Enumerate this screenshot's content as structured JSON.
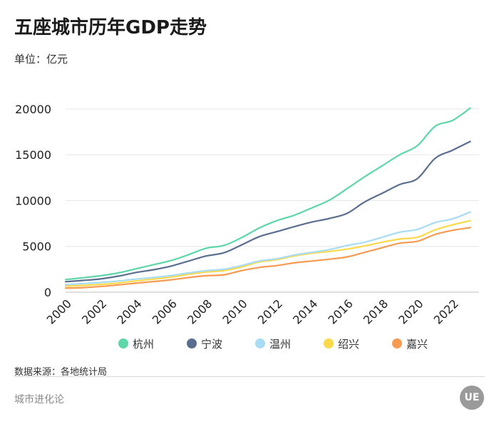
{
  "header": {
    "title": "五座城市历年GDP走势",
    "unit": "单位：亿元"
  },
  "footer": {
    "source": "数据来源：各地统计局",
    "brand": "城市进化论",
    "logo_text": "UE"
  },
  "colors": {
    "杭州": "#5dd6a8",
    "宁波": "#5a6e8f",
    "温州": "#a8dcf5",
    "绍兴": "#fbd94a",
    "嘉兴": "#f79a52",
    "grid": "#e6e6e6"
  },
  "chart_data": {
    "type": "line",
    "x": [
      2000,
      2001,
      2002,
      2003,
      2004,
      2005,
      2006,
      2007,
      2008,
      2009,
      2010,
      2011,
      2012,
      2013,
      2014,
      2015,
      2016,
      2017,
      2018,
      2019,
      2020,
      2021,
      2022,
      2023
    ],
    "xticks": [
      "2000",
      "2002",
      "2004",
      "2006",
      "2008",
      "2010",
      "2012",
      "2014",
      "2016",
      "2018",
      "2020",
      "2022"
    ],
    "yticks": [
      "0",
      "5000",
      "10000",
      "15000",
      "20000"
    ],
    "ylim": [
      0,
      21000
    ],
    "xlim": [
      2000,
      2023.5
    ],
    "grid": "horizontal",
    "legend": "bottom",
    "series": [
      {
        "name": "杭州",
        "values": [
          1380,
          1570,
          1800,
          2100,
          2550,
          3000,
          3450,
          4100,
          4800,
          5100,
          5950,
          7000,
          7800,
          8400,
          9200,
          10050,
          11300,
          12600,
          13800,
          15000,
          16000,
          18100,
          18750,
          20100
        ]
      },
      {
        "name": "宁波",
        "values": [
          1140,
          1280,
          1450,
          1750,
          2150,
          2450,
          2850,
          3400,
          3950,
          4300,
          5150,
          6050,
          6600,
          7150,
          7650,
          8050,
          8600,
          9850,
          10800,
          11750,
          12400,
          14600,
          15500,
          16450
        ]
      },
      {
        "name": "温州",
        "values": [
          820,
          940,
          1060,
          1220,
          1430,
          1600,
          1820,
          2100,
          2350,
          2500,
          2900,
          3400,
          3650,
          4050,
          4350,
          4650,
          5100,
          5450,
          6000,
          6550,
          6850,
          7600,
          8000,
          8750
        ]
      },
      {
        "name": "绍兴",
        "values": [
          650,
          740,
          850,
          1000,
          1230,
          1420,
          1650,
          1950,
          2200,
          2350,
          2750,
          3300,
          3550,
          3950,
          4250,
          4450,
          4700,
          5050,
          5450,
          5800,
          6000,
          6800,
          7350,
          7800
        ]
      },
      {
        "name": "嘉兴",
        "values": [
          440,
          500,
          620,
          790,
          980,
          1160,
          1350,
          1600,
          1800,
          1900,
          2350,
          2700,
          2900,
          3200,
          3400,
          3600,
          3850,
          4350,
          4850,
          5350,
          5550,
          6300,
          6750,
          7050
        ]
      }
    ]
  }
}
